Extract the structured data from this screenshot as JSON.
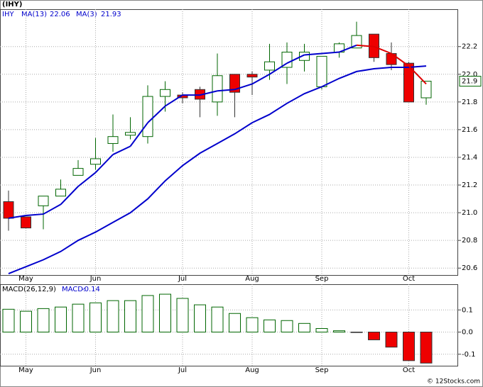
{
  "chart_data": [
    {
      "type": "candlestick",
      "title": "(IHY)",
      "symbol": "IHY",
      "categories": [
        null,
        "May",
        null,
        null,
        null,
        "Jun",
        null,
        null,
        null,
        null,
        "Jul",
        null,
        null,
        null,
        "Aug",
        null,
        null,
        null,
        "Sep",
        null,
        null,
        null,
        null,
        "Oct",
        null
      ],
      "open": [
        21.08,
        20.97,
        21.05,
        21.12,
        21.27,
        21.35,
        21.5,
        21.56,
        21.55,
        21.84,
        21.85,
        21.89,
        21.8,
        22.0,
        22.0,
        22.03,
        22.05,
        22.1,
        21.91,
        22.16,
        22.19,
        22.29,
        22.15,
        22.08,
        21.83
      ],
      "high": [
        21.16,
        20.97,
        21.12,
        21.24,
        21.38,
        21.54,
        21.71,
        21.69,
        21.92,
        21.95,
        21.87,
        21.91,
        22.15,
        22.0,
        22.02,
        22.22,
        22.23,
        22.22,
        22.13,
        22.23,
        22.38,
        22.29,
        22.23,
        22.09,
        21.95
      ],
      "low": [
        20.87,
        20.89,
        20.88,
        21.12,
        21.27,
        21.31,
        21.44,
        21.53,
        21.5,
        21.73,
        21.79,
        21.69,
        21.7,
        21.69,
        21.85,
        21.96,
        21.93,
        22.02,
        21.89,
        22.12,
        22.19,
        22.09,
        22.03,
        21.8,
        21.78
      ],
      "close": [
        20.96,
        20.89,
        21.12,
        21.17,
        21.32,
        21.39,
        21.55,
        21.58,
        21.84,
        21.89,
        21.83,
        21.82,
        21.99,
        21.87,
        21.98,
        22.09,
        22.16,
        22.16,
        22.13,
        22.22,
        22.28,
        22.12,
        22.07,
        21.8,
        21.95
      ],
      "last_price_label": "21.9",
      "up_color": "#006600",
      "down_color": "#ee0000",
      "series": [
        {
          "name": "MA(13)",
          "color": "#0000cc",
          "values": [
            20.56,
            20.61,
            20.66,
            20.72,
            20.8,
            20.86,
            20.93,
            21.0,
            21.1,
            21.23,
            21.34,
            21.43,
            21.5,
            21.57,
            21.65,
            21.71,
            21.79,
            21.86,
            21.91,
            21.97,
            22.02,
            22.04,
            22.05,
            22.05,
            22.06
          ]
        },
        {
          "name": "MA(3)",
          "color": "#0000cc",
          "down_color": "#dd0000",
          "values": [
            20.96,
            20.98,
            20.99,
            21.06,
            21.19,
            21.29,
            21.42,
            21.48,
            21.65,
            21.77,
            21.85,
            21.85,
            21.88,
            21.89,
            21.93,
            22.0,
            22.08,
            22.14,
            22.15,
            22.16,
            22.21,
            22.2,
            22.15,
            22.06,
            21.93
          ]
        }
      ],
      "ylim": [
        20.55,
        22.47
      ],
      "yticks": [
        20.6,
        20.8,
        {
          "value": 21,
          "label": "21.0"
        },
        21.2,
        21.4,
        21.6,
        21.8,
        {
          "value": 22,
          "label": "22.0"
        },
        22.2
      ],
      "grid": true
    },
    {
      "type": "bar",
      "title": "MACD(26,12,9)",
      "value_name": "MACD:",
      "categories": [
        null,
        "May",
        null,
        null,
        null,
        "Jun",
        null,
        null,
        null,
        null,
        "Jul",
        null,
        null,
        null,
        "Aug",
        null,
        null,
        null,
        "Sep",
        null,
        null,
        null,
        null,
        "Oct",
        null
      ],
      "values": [
        0.103,
        0.094,
        0.106,
        0.113,
        0.126,
        0.132,
        0.142,
        0.142,
        0.165,
        0.171,
        0.152,
        0.123,
        0.113,
        0.084,
        0.065,
        0.055,
        0.052,
        0.039,
        0.016,
        0.006,
        -0.002,
        -0.035,
        -0.068,
        -0.129,
        -0.14
      ],
      "up_color": "#006600",
      "down_color": "#ee0000",
      "ylim": [
        -0.152,
        0.216
      ],
      "yticks": [
        -0.1,
        {
          "value": 0,
          "label": "0.0"
        },
        0.1
      ],
      "grid": true
    },
    {
      "type": "watermark",
      "title": "© 12Stocks.com"
    }
  ]
}
